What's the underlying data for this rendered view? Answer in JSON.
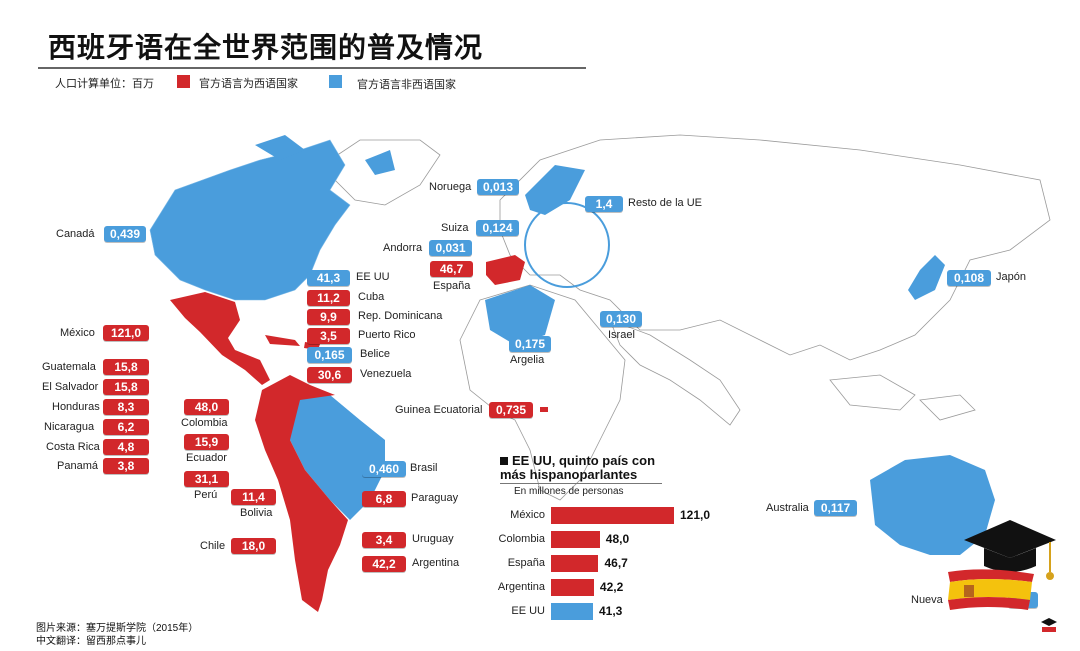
{
  "title": "西班牙语在全世界范围的普及情况",
  "legend": {
    "unit_note": "人口计算单位：百万",
    "official": "官方语言为西语国家",
    "non_official": "官方语言非西语国家",
    "official_color": "#d2282b",
    "non_official_color": "#4a9ddc"
  },
  "countries": [
    {
      "name": "Canadá",
      "value": "0,439",
      "type": "non_official"
    },
    {
      "name": "EE UU",
      "value": "41,3",
      "type": "non_official"
    },
    {
      "name": "Cuba",
      "value": "11,2",
      "type": "official"
    },
    {
      "name": "Rep. Dominicana",
      "value": "9,9",
      "type": "official"
    },
    {
      "name": "Puerto Rico",
      "value": "3,5",
      "type": "official"
    },
    {
      "name": "Belice",
      "value": "0,165",
      "type": "non_official"
    },
    {
      "name": "Venezuela",
      "value": "30,6",
      "type": "official"
    },
    {
      "name": "México",
      "value": "121,0",
      "type": "official"
    },
    {
      "name": "Guatemala",
      "value": "15,8",
      "type": "official"
    },
    {
      "name": "El Salvador",
      "value": "15,8",
      "type": "official"
    },
    {
      "name": "Honduras",
      "value": "8,3",
      "type": "official"
    },
    {
      "name": "Nicaragua",
      "value": "6,2",
      "type": "official"
    },
    {
      "name": "Costa Rica",
      "value": "4,8",
      "type": "official"
    },
    {
      "name": "Panamá",
      "value": "3,8",
      "type": "official"
    },
    {
      "name": "Colombia",
      "value": "48,0",
      "type": "official"
    },
    {
      "name": "Ecuador",
      "value": "15,9",
      "type": "official"
    },
    {
      "name": "Perú",
      "value": "31,1",
      "type": "official"
    },
    {
      "name": "Bolivia",
      "value": "11,4",
      "type": "official"
    },
    {
      "name": "Brasil",
      "value": "0,460",
      "type": "non_official"
    },
    {
      "name": "Paraguay",
      "value": "6,8",
      "type": "official"
    },
    {
      "name": "Chile",
      "value": "18,0",
      "type": "official"
    },
    {
      "name": "Uruguay",
      "value": "3,4",
      "type": "official"
    },
    {
      "name": "Argentina",
      "value": "42,2",
      "type": "official"
    },
    {
      "name": "Guinea Ecuatorial",
      "value": "0,735",
      "type": "official"
    },
    {
      "name": "Noruega",
      "value": "0,013",
      "type": "non_official"
    },
    {
      "name": "Suiza",
      "value": "0,124",
      "type": "non_official"
    },
    {
      "name": "Andorra",
      "value": "0,031",
      "type": "non_official"
    },
    {
      "name": "España",
      "value": "46,7",
      "type": "official"
    },
    {
      "name": "Resto de la UE",
      "value": "1,4",
      "type": "non_official"
    },
    {
      "name": "Argelia",
      "value": "0,175",
      "type": "non_official"
    },
    {
      "name": "Israel",
      "value": "0,130",
      "type": "non_official"
    },
    {
      "name": "Japón",
      "value": "0,108",
      "type": "non_official"
    },
    {
      "name": "Australia",
      "value": "0,117",
      "type": "non_official"
    },
    {
      "name": "Nueva",
      "value": "",
      "type": "non_official"
    }
  ],
  "inset": {
    "title_line1": "EE UU, quinto país con",
    "title_line2": "más hispanoparlantes",
    "subtitle": "En millones de personas"
  },
  "chart_data": {
    "type": "bar",
    "title": "EE UU, quinto país con más hispanoparlantes",
    "subtitle": "En millones de personas",
    "orientation": "horizontal",
    "categories": [
      "México",
      "Colombia",
      "España",
      "Argentina",
      "EE UU"
    ],
    "values": [
      121.0,
      48.0,
      46.7,
      42.2,
      41.3
    ],
    "value_labels": [
      "121,0",
      "48,0",
      "46,7",
      "42,2",
      "41,3"
    ],
    "colors": [
      "#d2282b",
      "#d2282b",
      "#d2282b",
      "#d2282b",
      "#4a9ddc"
    ],
    "xlim": [
      0,
      121.0
    ],
    "grid": false
  },
  "source": {
    "line1": "图片来源：塞万提斯学院（2015年）",
    "line2": "中文翻译：留西那点事儿"
  },
  "icons": [
    "graduation-cap-icon",
    "spain-flag-icon"
  ]
}
